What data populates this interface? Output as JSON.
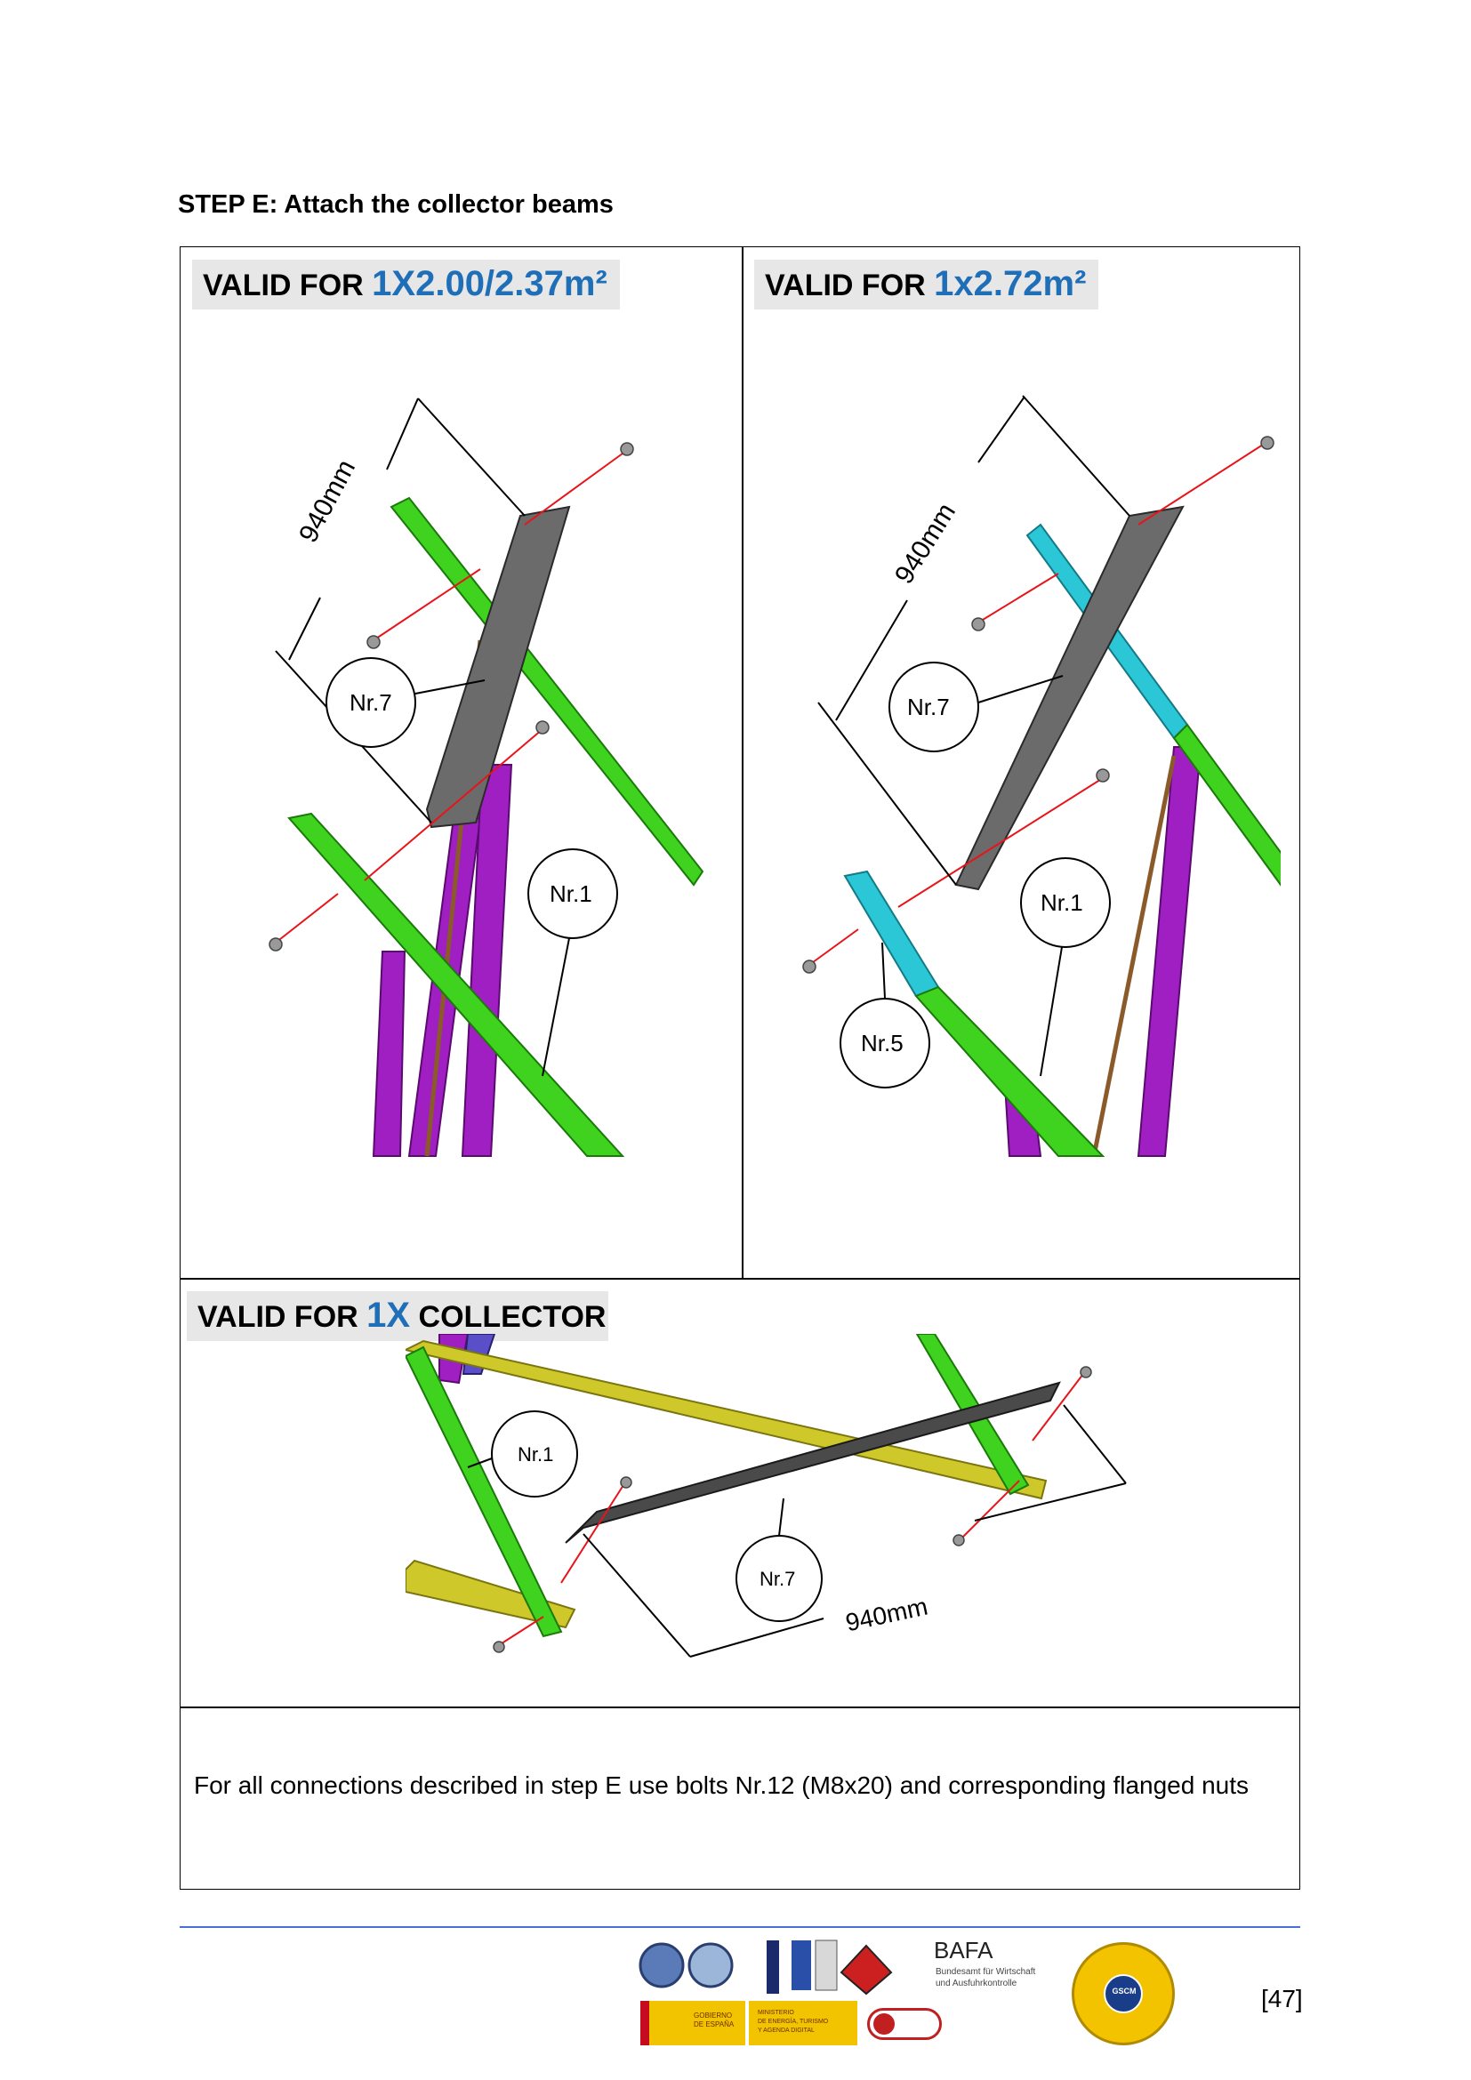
{
  "step_title": "STEP E: Attach the collector beams",
  "panels": {
    "top_left": {
      "valid_prefix": "VALID FOR",
      "valid_highlight": "1X2.00/2.37m²",
      "dimension": "940mm",
      "labels": [
        "Nr.7",
        "Nr.1"
      ]
    },
    "top_right": {
      "valid_prefix": "VALID FOR",
      "valid_highlight": "1x2.72m²",
      "dimension": "940mm",
      "labels": [
        "Nr.7",
        "Nr.1",
        "Nr.5"
      ]
    },
    "bottom": {
      "valid_prefix": "VALID FOR",
      "valid_highlight": "1X",
      "valid_suffix": "COLLECTOR",
      "dimension": "940mm",
      "labels": [
        "Nr.1",
        "Nr.7"
      ]
    }
  },
  "note": "For all connections described in step E use bolts Nr.12 (M8x20) and corresponding flanged nuts",
  "footer": {
    "page_number": "[47]",
    "logo_bafa_title": "BAFA",
    "logo_bafa_subtitle_1": "Bundesamt für Wirtschaft",
    "logo_bafa_subtitle_2": "und Ausfuhrkontrolle",
    "logo_gobierno_1": "GOBIERNO",
    "logo_gobierno_2": "DE ESPAÑA",
    "logo_ministerio_1": "MINISTERIO",
    "logo_ministerio_2": "DE ENERGÍA, TURISMO",
    "logo_ministerio_3": "Y AGENDA DIGITAL",
    "logo_gscm": "GSCM"
  },
  "colors": {
    "highlight_blue": "#1f6fb8",
    "frame_green": "#3fd21e",
    "frame_cyan": "#2bc7d6",
    "frame_purple": "#a01fc2",
    "frame_yellow": "#cfc82a",
    "beam_grey": "#6b6b6b",
    "arrow_red": "#e8141a",
    "footer_rule": "#4a6fd6"
  }
}
